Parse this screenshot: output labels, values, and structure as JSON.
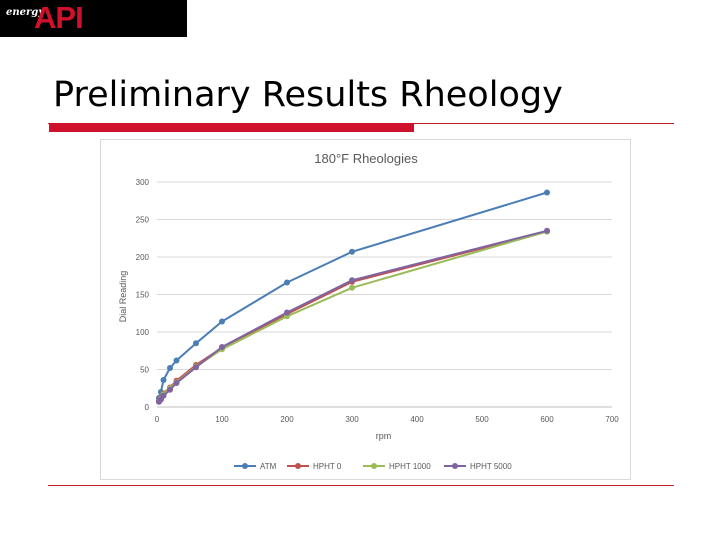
{
  "header": {
    "logo_energy": "energy",
    "logo_mark": "API",
    "title": "Preliminary Results Rheology"
  },
  "colors": {
    "accent": "#d0112b",
    "ATM": "#4a7eb5",
    "HPHT 0": "#c0504d",
    "HPHT 1000": "#9bbb59",
    "HPHT 5000": "#8064a2"
  },
  "chart_data": {
    "type": "line",
    "title": "180°F Rheologies",
    "xlabel": "rpm",
    "ylabel": "Dial Reading",
    "xlim": [
      0,
      700
    ],
    "ylim": [
      0,
      300
    ],
    "xticks": [
      0,
      100,
      200,
      300,
      400,
      500,
      600,
      700
    ],
    "yticks": [
      0,
      50,
      100,
      150,
      200,
      250,
      300
    ],
    "grid": "horizontal",
    "legend": "bottom",
    "x": [
      3,
      6,
      10,
      20,
      30,
      60,
      100,
      200,
      300,
      600
    ],
    "series": [
      {
        "name": "ATM",
        "values": [
          12,
          20,
          36,
          52,
          62,
          85,
          114,
          166,
          207,
          286
        ]
      },
      {
        "name": "HPHT 0",
        "values": [
          8,
          12,
          18,
          26,
          35,
          56,
          79,
          124,
          167,
          234
        ]
      },
      {
        "name": "HPHT 1000",
        "values": [
          7,
          11,
          17,
          25,
          33,
          54,
          77,
          121,
          159,
          234
        ]
      },
      {
        "name": "HPHT 5000",
        "values": [
          7,
          10,
          15,
          23,
          32,
          53,
          80,
          126,
          169,
          235
        ]
      }
    ]
  }
}
